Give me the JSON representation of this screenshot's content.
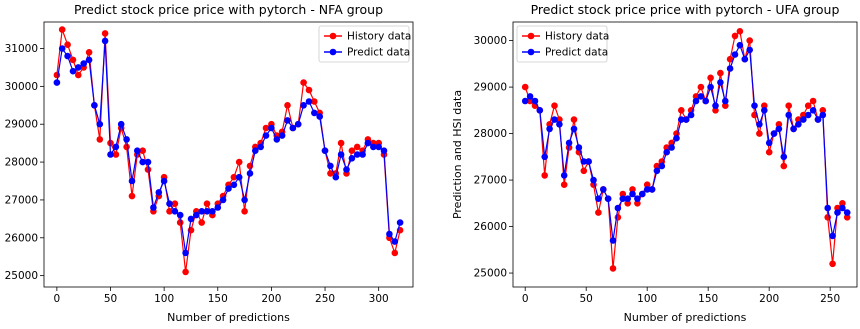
{
  "colors": {
    "history": "#ff0000",
    "predict": "#0000ff"
  },
  "chart_data": [
    {
      "type": "line",
      "title": "Predict stock price price with pytorch - NFA group",
      "xlabel": "Number of predictions",
      "ylabel": "",
      "xlim": [
        -12,
        332
      ],
      "ylim": [
        24700,
        31700
      ],
      "xticks": [
        0,
        50,
        100,
        150,
        200,
        250,
        300
      ],
      "yticks": [
        25000,
        26000,
        27000,
        28000,
        29000,
        30000,
        31000
      ],
      "legend": {
        "position": "top-right",
        "entries": [
          "History data",
          "Predict data"
        ]
      },
      "series": [
        {
          "name": "History data",
          "color": "#ff0000",
          "x": [
            0,
            5,
            10,
            15,
            20,
            25,
            30,
            35,
            40,
            45,
            50,
            55,
            60,
            65,
            70,
            75,
            80,
            85,
            90,
            95,
            100,
            105,
            110,
            115,
            120,
            125,
            130,
            135,
            140,
            145,
            150,
            155,
            160,
            165,
            170,
            175,
            180,
            185,
            190,
            195,
            200,
            205,
            210,
            215,
            220,
            225,
            230,
            235,
            240,
            245,
            250,
            255,
            260,
            265,
            270,
            275,
            280,
            285,
            290,
            295,
            300,
            305,
            310,
            315,
            320
          ],
          "values": [
            30300,
            31500,
            31100,
            30700,
            30300,
            30500,
            30900,
            29500,
            28600,
            31400,
            28500,
            28200,
            28900,
            28400,
            27100,
            28200,
            28300,
            27800,
            26700,
            27100,
            27600,
            26700,
            26900,
            26400,
            25100,
            26200,
            26700,
            26400,
            26900,
            26600,
            26900,
            27100,
            27400,
            27600,
            28000,
            26700,
            27900,
            28400,
            28500,
            28900,
            29000,
            28700,
            28800,
            29500,
            28900,
            29000,
            30100,
            29900,
            29600,
            29300,
            28300,
            27700,
            27700,
            28500,
            27700,
            28300,
            28400,
            28300,
            28600,
            28500,
            28500,
            28200,
            26000,
            25600,
            26200
          ]
        },
        {
          "name": "Predict data",
          "color": "#0000ff",
          "x": [
            0,
            5,
            10,
            15,
            20,
            25,
            30,
            35,
            40,
            45,
            50,
            55,
            60,
            65,
            70,
            75,
            80,
            85,
            90,
            95,
            100,
            105,
            110,
            115,
            120,
            125,
            130,
            135,
            140,
            145,
            150,
            155,
            160,
            165,
            170,
            175,
            180,
            185,
            190,
            195,
            200,
            205,
            210,
            215,
            220,
            225,
            230,
            235,
            240,
            245,
            250,
            255,
            260,
            265,
            270,
            275,
            280,
            285,
            290,
            295,
            300,
            305,
            310,
            315,
            320
          ],
          "values": [
            30100,
            31000,
            30800,
            30400,
            30500,
            30600,
            30700,
            29500,
            29000,
            31200,
            28200,
            28400,
            29000,
            28600,
            27500,
            28300,
            28000,
            28000,
            26800,
            27200,
            27500,
            26900,
            26700,
            26600,
            25600,
            26500,
            26600,
            26700,
            26700,
            26700,
            26800,
            27000,
            27300,
            27400,
            27600,
            27000,
            27700,
            28300,
            28400,
            28700,
            28900,
            28600,
            28700,
            29100,
            28900,
            29000,
            29500,
            29600,
            29300,
            29200,
            28300,
            27900,
            27600,
            28200,
            27800,
            28100,
            28200,
            28200,
            28500,
            28400,
            28400,
            28300,
            26100,
            25900,
            26400
          ]
        }
      ]
    },
    {
      "type": "line",
      "title": "Predict stock price price with pytorch - UFA group",
      "xlabel": "Number of predictions",
      "ylabel": "Prediction and HSI data",
      "xlim": [
        -10,
        272
      ],
      "ylim": [
        24700,
        30400
      ],
      "xticks": [
        0,
        50,
        100,
        150,
        200,
        250
      ],
      "yticks": [
        25000,
        26000,
        27000,
        28000,
        29000,
        30000
      ],
      "legend": {
        "position": "top-left",
        "entries": [
          "History data",
          "Predict data"
        ]
      },
      "series": [
        {
          "name": "History data",
          "color": "#ff0000",
          "x": [
            0,
            4,
            8,
            12,
            16,
            20,
            24,
            28,
            32,
            36,
            40,
            44,
            48,
            52,
            56,
            60,
            64,
            68,
            72,
            76,
            80,
            84,
            88,
            92,
            96,
            100,
            104,
            108,
            112,
            116,
            120,
            124,
            128,
            132,
            136,
            140,
            144,
            148,
            152,
            156,
            160,
            164,
            168,
            172,
            176,
            180,
            184,
            188,
            192,
            196,
            200,
            204,
            208,
            212,
            216,
            220,
            224,
            228,
            232,
            236,
            240,
            244,
            248,
            252,
            256,
            260,
            264
          ],
          "values": [
            29000,
            28700,
            28600,
            28500,
            27100,
            28200,
            28600,
            28300,
            26900,
            27700,
            28300,
            27600,
            27200,
            27400,
            26900,
            26300,
            26800,
            26600,
            25100,
            26200,
            26700,
            26500,
            26800,
            26500,
            26700,
            26900,
            26800,
            27300,
            27400,
            27700,
            27800,
            28000,
            28500,
            28300,
            28500,
            28800,
            29000,
            28700,
            29200,
            28500,
            29300,
            28600,
            29600,
            30100,
            30200,
            29600,
            30000,
            28400,
            28000,
            28600,
            27600,
            28000,
            28200,
            27300,
            28600,
            28100,
            28300,
            28400,
            28600,
            28700,
            28300,
            28500,
            26200,
            25200,
            26400,
            26500,
            26200
          ]
        },
        {
          "name": "Predict data",
          "color": "#0000ff",
          "x": [
            0,
            4,
            8,
            12,
            16,
            20,
            24,
            28,
            32,
            36,
            40,
            44,
            48,
            52,
            56,
            60,
            64,
            68,
            72,
            76,
            80,
            84,
            88,
            92,
            96,
            100,
            104,
            108,
            112,
            116,
            120,
            124,
            128,
            132,
            136,
            140,
            144,
            148,
            152,
            156,
            160,
            164,
            168,
            172,
            176,
            180,
            184,
            188,
            192,
            196,
            200,
            204,
            208,
            212,
            216,
            220,
            224,
            228,
            232,
            236,
            240,
            244,
            248,
            252,
            256,
            260,
            264
          ],
          "values": [
            28700,
            28800,
            28700,
            28500,
            27500,
            28100,
            28300,
            28200,
            27100,
            27800,
            28100,
            27700,
            27400,
            27400,
            27000,
            26600,
            26800,
            26600,
            25700,
            26400,
            26600,
            26600,
            26700,
            26600,
            26700,
            26800,
            26800,
            27200,
            27300,
            27600,
            27700,
            27900,
            28300,
            28300,
            28400,
            28700,
            28800,
            28700,
            29000,
            28600,
            29100,
            28700,
            29400,
            29700,
            29900,
            29600,
            29800,
            28600,
            28200,
            28500,
            27800,
            28000,
            28100,
            27500,
            28400,
            28100,
            28200,
            28300,
            28400,
            28500,
            28300,
            28400,
            26400,
            25800,
            26300,
            26400,
            26300
          ]
        }
      ]
    }
  ]
}
